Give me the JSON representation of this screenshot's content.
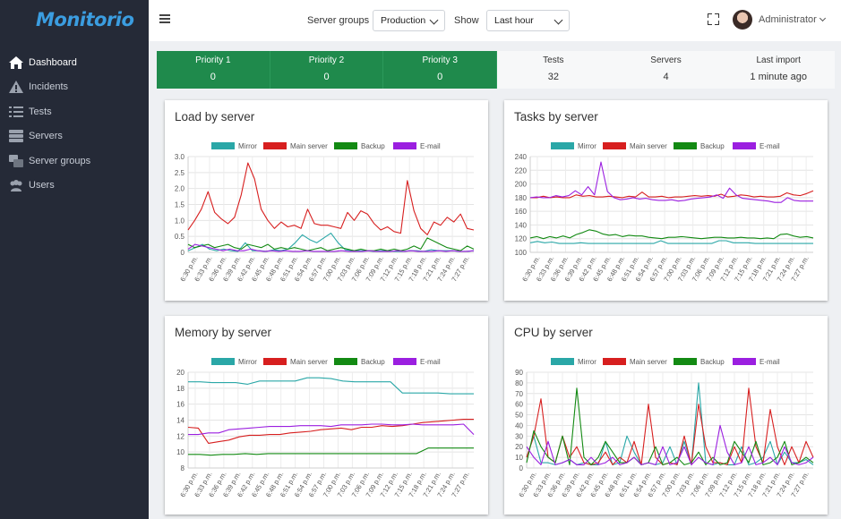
{
  "app": {
    "logo": "Monitorio"
  },
  "sidebar": {
    "items": [
      {
        "label": "Dashboard",
        "icon": "home-icon",
        "active": true
      },
      {
        "label": "Incidents",
        "icon": "warning-icon",
        "active": false
      },
      {
        "label": "Tests",
        "icon": "list-icon",
        "active": false
      },
      {
        "label": "Servers",
        "icon": "server-icon",
        "active": false
      },
      {
        "label": "Server groups",
        "icon": "server-group-icon",
        "active": false
      },
      {
        "label": "Users",
        "icon": "users-icon",
        "active": false
      }
    ]
  },
  "topbar": {
    "server_groups_label": "Server groups",
    "server_groups_value": "Production",
    "show_label": "Show",
    "show_value": "Last hour",
    "user_name": "Administrator"
  },
  "stats": [
    {
      "label": "Priority 1",
      "value": "0",
      "style": "green"
    },
    {
      "label": "Priority 2",
      "value": "0",
      "style": "green"
    },
    {
      "label": "Priority 3",
      "value": "0",
      "style": "green"
    },
    {
      "label": "Tests",
      "value": "32",
      "style": "light"
    },
    {
      "label": "Servers",
      "value": "4",
      "style": "light"
    },
    {
      "label": "Last import",
      "value": "1 minute ago",
      "style": "light"
    }
  ],
  "colors": {
    "Mirror": "#2aa7a7",
    "Main server": "#d71f1f",
    "Backup": "#138a13",
    "E-mail": "#9b1fe0"
  },
  "chart_data": [
    {
      "type": "line",
      "title": "Load by server",
      "ylim": [
        0,
        3
      ],
      "yticks": [
        "0",
        "0.5",
        "1.0",
        "1.5",
        "2.0",
        "2.5",
        "3.0"
      ],
      "xticks": [
        "6:30 p.m.",
        "6:33 p.m.",
        "6:36 p.m.",
        "6:39 p.m.",
        "6:42 p.m.",
        "6:45 p.m.",
        "6:48 p.m.",
        "6:51 p.m.",
        "6:54 p.m.",
        "6:57 p.m.",
        "7:00 p.m.",
        "7:03 p.m.",
        "7:06 p.m.",
        "7:09 p.m.",
        "7:12 p.m.",
        "7:15 p.m.",
        "7:18 p.m.",
        "7:21 p.m.",
        "7:24 p.m.",
        "7:27 p.m."
      ],
      "series": [
        {
          "name": "Mirror",
          "values": [
            0.05,
            0.15,
            0.25,
            0.1,
            0.05,
            0.1,
            0.05,
            0.03,
            0.3,
            0.05,
            0.05,
            0.03,
            0.08,
            0.05,
            0.1,
            0.3,
            0.55,
            0.4,
            0.3,
            0.45,
            0.6,
            0.3,
            0.08,
            0.05,
            0.05,
            0.05,
            0.03,
            0.05,
            0.05,
            0.03,
            0.03,
            0.05,
            0.05,
            0.03,
            0.08,
            0.05,
            0.05,
            0.05,
            0.03,
            0.03,
            0.05
          ]
        },
        {
          "name": "Main server",
          "values": [
            0.7,
            1.0,
            1.35,
            1.9,
            1.25,
            1.05,
            0.9,
            1.1,
            1.8,
            2.8,
            2.3,
            1.35,
            1.0,
            0.75,
            0.95,
            0.8,
            0.85,
            0.75,
            1.35,
            0.9,
            0.85,
            0.85,
            0.8,
            0.75,
            1.25,
            1.0,
            1.3,
            1.2,
            0.9,
            0.7,
            0.8,
            0.65,
            0.6,
            2.25,
            1.3,
            0.75,
            0.55,
            0.95,
            0.85,
            1.1,
            0.95,
            1.2,
            0.75,
            0.7
          ]
        },
        {
          "name": "Backup",
          "values": [
            0.25,
            0.15,
            0.2,
            0.25,
            0.15,
            0.2,
            0.25,
            0.15,
            0.1,
            0.25,
            0.2,
            0.15,
            0.25,
            0.1,
            0.15,
            0.1,
            0.15,
            0.1,
            0.05,
            0.1,
            0.15,
            0.05,
            0.1,
            0.15,
            0.1,
            0.05,
            0.1,
            0.05,
            0.05,
            0.1,
            0.05,
            0.1,
            0.05,
            0.1,
            0.2,
            0.1,
            0.45,
            0.35,
            0.25,
            0.15,
            0.1,
            0.05,
            0.2,
            0.1
          ]
        },
        {
          "name": "E-mail",
          "values": [
            0.1,
            0.25,
            0.2,
            0.15,
            0.1,
            0.05,
            0.1,
            0.05,
            0.05,
            0.1,
            0.05,
            0.03,
            0.05,
            0.03,
            0.05,
            0.03,
            0.03,
            0.05,
            0.03,
            0.03,
            0.03,
            0.03,
            0.05,
            0.03,
            0.03,
            0.03,
            0.05,
            0.03,
            0.03,
            0.03,
            0.05,
            0.03,
            0.05,
            0.03,
            0.03,
            0.03,
            0.05,
            0.03,
            0.05,
            0.03,
            0.03,
            0.05
          ]
        }
      ]
    },
    {
      "type": "line",
      "title": "Tasks by server",
      "ylim": [
        100,
        240
      ],
      "yticks": [
        "100",
        "120",
        "140",
        "160",
        "180",
        "200",
        "220",
        "240"
      ],
      "xticks": [
        "6:30 p.m.",
        "6:33 p.m.",
        "6:36 p.m.",
        "6:39 p.m.",
        "6:42 p.m.",
        "6:45 p.m.",
        "6:48 p.m.",
        "6:51 p.m.",
        "6:54 p.m.",
        "6:57 p.m.",
        "7:00 p.m.",
        "7:03 p.m.",
        "7:06 p.m.",
        "7:09 p.m.",
        "7:12 p.m.",
        "7:15 p.m.",
        "7:18 p.m.",
        "7:21 p.m.",
        "7:24 p.m.",
        "7:27 p.m."
      ],
      "series": [
        {
          "name": "Mirror",
          "values": [
            114,
            116,
            114,
            115,
            113,
            113,
            113,
            114,
            113,
            113,
            113,
            113,
            113,
            113,
            113,
            113,
            113,
            113,
            117,
            113,
            113,
            113,
            113,
            113,
            113,
            113,
            117,
            117,
            114,
            114,
            114,
            113,
            113,
            113,
            113,
            113,
            113,
            113,
            113,
            113
          ]
        },
        {
          "name": "Main server",
          "values": [
            180,
            180,
            182,
            180,
            181,
            180,
            180,
            184,
            182,
            183,
            181,
            181,
            182,
            181,
            180,
            182,
            181,
            188,
            181,
            181,
            182,
            180,
            181,
            181,
            182,
            183,
            182,
            183,
            182,
            185,
            181,
            182,
            184,
            183,
            181,
            182,
            181,
            181,
            182,
            187,
            184,
            183,
            186,
            190
          ]
        },
        {
          "name": "Backup",
          "values": [
            121,
            123,
            120,
            123,
            121,
            124,
            121,
            126,
            129,
            133,
            131,
            127,
            125,
            126,
            123,
            125,
            124,
            124,
            122,
            121,
            120,
            122,
            122,
            123,
            122,
            121,
            120,
            121,
            122,
            122,
            121,
            121,
            122,
            121,
            121,
            120,
            121,
            120,
            126,
            127,
            124,
            122,
            123,
            121
          ]
        },
        {
          "name": "E-mail",
          "values": [
            180,
            181,
            180,
            180,
            183,
            181,
            183,
            190,
            184,
            196,
            184,
            232,
            189,
            180,
            177,
            178,
            180,
            178,
            179,
            177,
            176,
            176,
            177,
            175,
            176,
            178,
            179,
            180,
            181,
            184,
            179,
            194,
            184,
            179,
            178,
            177,
            176,
            175,
            173,
            173,
            180,
            176,
            175,
            175,
            175
          ]
        }
      ]
    },
    {
      "type": "line",
      "title": "Memory by server",
      "ylim": [
        8,
        20
      ],
      "yticks": [
        "8",
        "10",
        "12",
        "14",
        "16",
        "18",
        "20"
      ],
      "xticks": [
        "6:30 p.m.",
        "6:33 p.m.",
        "6:36 p.m.",
        "6:39 p.m.",
        "6:42 p.m.",
        "6:45 p.m.",
        "6:48 p.m.",
        "6:51 p.m.",
        "6:54 p.m.",
        "6:57 p.m.",
        "7:00 p.m.",
        "7:03 p.m.",
        "7:06 p.m.",
        "7:09 p.m.",
        "7:12 p.m.",
        "7:15 p.m.",
        "7:18 p.m.",
        "7:21 p.m.",
        "7:24 p.m.",
        "7:27 p.m."
      ],
      "series": [
        {
          "name": "Mirror",
          "values": [
            18.8,
            18.8,
            18.7,
            18.7,
            18.7,
            18.5,
            18.9,
            18.9,
            18.9,
            18.9,
            19.3,
            19.3,
            19.2,
            18.9,
            18.8,
            18.8,
            18.8,
            18.8,
            17.4,
            17.4,
            17.4,
            17.4,
            17.3,
            17.3,
            17.3
          ]
        },
        {
          "name": "Main server",
          "values": [
            13.1,
            13.0,
            11.1,
            11.3,
            11.5,
            11.9,
            12.1,
            12.1,
            12.2,
            12.2,
            12.4,
            12.5,
            12.6,
            12.8,
            12.9,
            13.0,
            12.8,
            13.1,
            13.1,
            13.3,
            13.2,
            13.3,
            13.5,
            13.7,
            13.8,
            13.9,
            14.0,
            14.1,
            14.1
          ]
        },
        {
          "name": "Backup",
          "values": [
            9.7,
            9.7,
            9.6,
            9.7,
            9.7,
            9.8,
            9.7,
            9.8,
            9.8,
            9.8,
            9.8,
            9.8,
            9.8,
            9.8,
            9.8,
            9.8,
            9.8,
            9.8,
            9.8,
            9.8,
            9.8,
            10.5,
            10.5,
            10.5,
            10.5,
            10.5
          ]
        },
        {
          "name": "E-mail",
          "values": [
            12.2,
            12.2,
            12.4,
            12.4,
            12.8,
            12.9,
            13.0,
            13.1,
            13.2,
            13.2,
            13.2,
            13.3,
            13.3,
            13.3,
            13.2,
            13.4,
            13.4,
            13.4,
            13.5,
            13.5,
            13.4,
            13.4,
            13.5,
            13.4,
            13.4,
            13.4,
            13.4,
            13.5,
            12.2
          ]
        }
      ]
    },
    {
      "type": "line",
      "title": "CPU by server",
      "ylim": [
        0,
        90
      ],
      "yticks": [
        "0",
        "10",
        "20",
        "30",
        "40",
        "50",
        "60",
        "70",
        "80",
        "90"
      ],
      "xticks": [
        "6:30 p.m.",
        "6:33 p.m.",
        "6:36 p.m.",
        "6:39 p.m.",
        "6:42 p.m.",
        "6:45 p.m.",
        "6:48 p.m.",
        "6:51 p.m.",
        "6:54 p.m.",
        "6:57 p.m.",
        "7:00 p.m.",
        "7:03 p.m.",
        "7:06 p.m.",
        "7:09 p.m.",
        "7:12 p.m.",
        "7:15 p.m.",
        "7:18 p.m.",
        "7:21 p.m.",
        "7:24 p.m.",
        "7:27 p.m."
      ],
      "series": [
        {
          "name": "Mirror",
          "values": [
            10,
            30,
            5,
            5,
            3,
            5,
            8,
            3,
            5,
            3,
            3,
            25,
            3,
            5,
            30,
            15,
            3,
            5,
            3,
            5,
            20,
            3,
            25,
            3,
            80,
            5,
            3,
            5,
            3,
            3,
            20,
            3,
            5,
            10,
            25,
            3,
            15,
            5,
            5,
            8,
            3
          ]
        },
        {
          "name": "Main server",
          "values": [
            10,
            30,
            65,
            10,
            5,
            30,
            10,
            20,
            5,
            3,
            5,
            15,
            3,
            10,
            5,
            25,
            3,
            60,
            10,
            3,
            5,
            3,
            30,
            3,
            60,
            20,
            5,
            5,
            3,
            20,
            5,
            75,
            20,
            5,
            55,
            20,
            3,
            20,
            5,
            25,
            10
          ]
        },
        {
          "name": "Backup",
          "values": [
            5,
            35,
            20,
            10,
            5,
            30,
            3,
            75,
            10,
            3,
            10,
            25,
            15,
            5,
            5,
            10,
            3,
            5,
            20,
            3,
            5,
            10,
            3,
            5,
            15,
            3,
            10,
            3,
            5,
            25,
            15,
            5,
            25,
            3,
            5,
            10,
            25,
            3,
            5,
            10,
            5
          ]
        },
        {
          "name": "E-mail",
          "values": [
            20,
            10,
            3,
            25,
            3,
            5,
            8,
            3,
            3,
            10,
            3,
            5,
            10,
            3,
            5,
            10,
            3,
            5,
            3,
            20,
            3,
            5,
            20,
            3,
            10,
            5,
            3,
            40,
            15,
            3,
            5,
            20,
            3,
            5,
            10,
            3,
            20,
            5,
            3,
            5,
            10
          ]
        }
      ]
    }
  ]
}
